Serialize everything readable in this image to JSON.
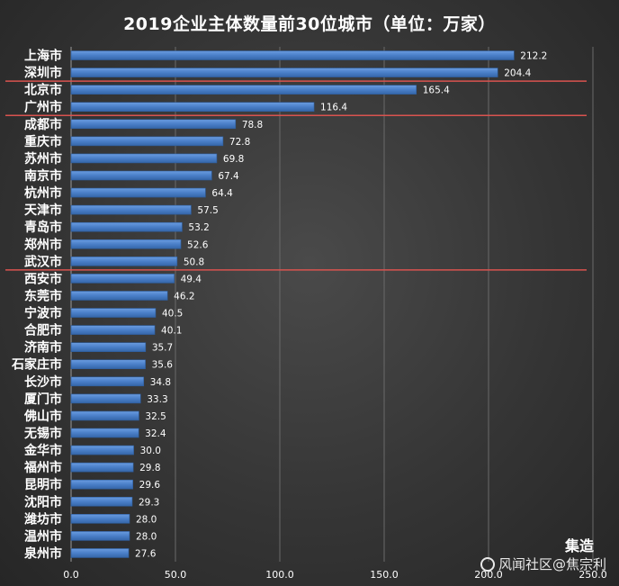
{
  "chart_data": {
    "type": "bar",
    "orientation": "horizontal",
    "title": "2019企业主体数量前30位城市（单位：万家）",
    "categories": [
      "上海市",
      "深圳市",
      "北京市",
      "广州市",
      "成都市",
      "重庆市",
      "苏州市",
      "南京市",
      "杭州市",
      "天津市",
      "青岛市",
      "郑州市",
      "武汉市",
      "西安市",
      "东莞市",
      "宁波市",
      "合肥市",
      "济南市",
      "石家庄市",
      "长沙市",
      "厦门市",
      "佛山市",
      "无锡市",
      "金华市",
      "福州市",
      "昆明市",
      "沈阳市",
      "潍坊市",
      "温州市",
      "泉州市"
    ],
    "values": [
      212.2,
      204.4,
      165.4,
      116.4,
      78.8,
      72.8,
      69.8,
      67.4,
      64.4,
      57.5,
      53.2,
      52.6,
      50.8,
      49.4,
      46.2,
      40.5,
      40.1,
      35.7,
      35.6,
      34.8,
      33.3,
      32.5,
      32.4,
      30.0,
      29.8,
      29.6,
      29.3,
      28.0,
      28.0,
      27.6
    ],
    "value_labels": [
      "212.2",
      "204.4",
      "165.4",
      "116.4",
      "78.8",
      "72.8",
      "69.8",
      "67.4",
      "64.4",
      "57.5",
      "53.2",
      "52.6",
      "50.8",
      "49.4",
      "46.2",
      "40.5",
      "40.1",
      "35.7",
      "35.6",
      "34.8",
      "33.3",
      "32.5",
      "32.4",
      "30.0",
      "29.8",
      "29.6",
      "29.3",
      "28.0",
      "28.0",
      "27.6"
    ],
    "xlim": [
      0,
      250
    ],
    "x_ticks": [
      0,
      50,
      100,
      150,
      200,
      250
    ],
    "x_tick_labels": [
      "0.0",
      "50.0",
      "100.0",
      "150.0",
      "200.0",
      "250.0"
    ],
    "xlabel": "",
    "ylabel": "",
    "grid": "vertical",
    "separators_after": [
      2,
      4,
      13
    ],
    "colors": {
      "bar": "#4a7fc8",
      "bar_edge": "#2e5e9e",
      "separator": "#d9534f",
      "grid": "#6a6a6a",
      "label": "#ffffff"
    }
  },
  "watermark": {
    "text": "风闻社区@焦宗利",
    "brand": "集造"
  }
}
